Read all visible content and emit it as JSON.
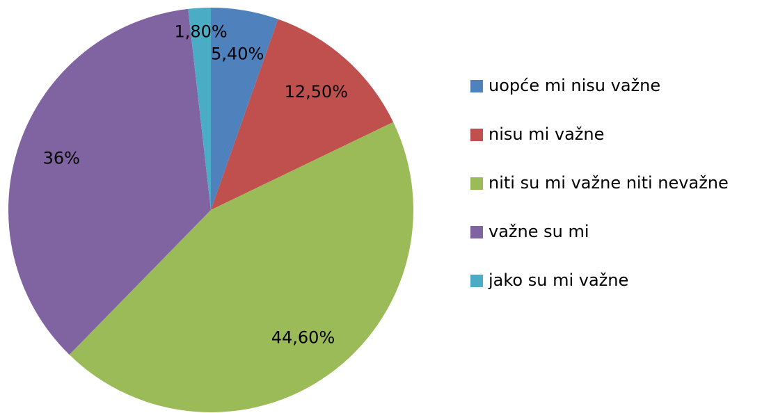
{
  "chart_data": {
    "type": "pie",
    "categories": [
      "uopće mi nisu važne",
      "nisu mi važne",
      "niti su mi važne niti nevažne",
      "važne su mi",
      "jako su mi važne"
    ],
    "values": [
      5.4,
      12.5,
      44.6,
      36,
      1.8
    ],
    "value_labels": [
      "5,40%",
      "12,50%",
      "44,60%",
      "36%",
      "1,80%"
    ],
    "colors": [
      "#4f81bd",
      "#c0504d",
      "#9bbb59",
      "#8064a2",
      "#4bacc6"
    ],
    "legend": "right"
  }
}
